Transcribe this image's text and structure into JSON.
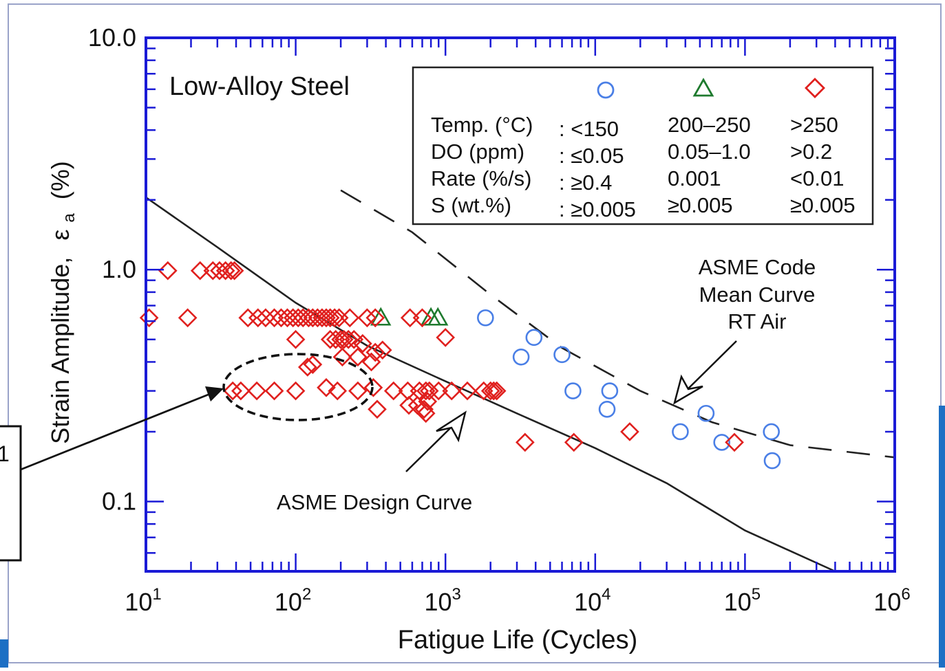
{
  "chart_data": {
    "type": "scatter",
    "title": "Low-Alloy Steel",
    "xlabel": "Fatigue Life (Cycles)",
    "ylabel_main": "Strain Amplitude,",
    "ylabel_sym": "ε",
    "ylabel_sub": "a",
    "ylabel_unit": "(%)",
    "x_scale": "log",
    "y_scale": "log",
    "xlim": [
      10,
      1000000
    ],
    "ylim": [
      0.05,
      10
    ],
    "x_ticks": [
      {
        "value": 10,
        "base": "10",
        "exp": "1"
      },
      {
        "value": 100,
        "base": "10",
        "exp": "2"
      },
      {
        "value": 1000,
        "base": "10",
        "exp": "3"
      },
      {
        "value": 10000,
        "base": "10",
        "exp": "4"
      },
      {
        "value": 100000,
        "base": "10",
        "exp": "5"
      },
      {
        "value": 1000000,
        "base": "10",
        "exp": "6"
      }
    ],
    "y_ticks": [
      {
        "value": 10,
        "label": "10.0"
      },
      {
        "value": 1,
        "label": "1.0"
      },
      {
        "value": 0.1,
        "label": "0.1"
      }
    ],
    "legend": {
      "placement": "top-right",
      "symbol_colors": [
        "#4a7fe6",
        "#1e7a2e",
        "#e0201e"
      ],
      "rows": [
        {
          "label": "Temp. (°C)",
          "values": [
            ": <150",
            "200–250",
            ">250"
          ]
        },
        {
          "label": "DO (ppm)",
          "values": [
            ": ≤0.05",
            "0.05–1.0",
            ">0.2"
          ]
        },
        {
          "label": "Rate (%/s)",
          "values": [
            ": ≥0.4",
            "0.001",
            "<0.01"
          ]
        },
        {
          "label": "S (wt.%)",
          "values": [
            ": ≥0.005",
            "≥0.005",
            "≥0.005"
          ]
        }
      ]
    },
    "series": [
      {
        "marker": "circle",
        "color": "#4a7fe6",
        "points": [
          [
            1850,
            0.62
          ],
          [
            3200,
            0.42
          ],
          [
            3900,
            0.51
          ],
          [
            6000,
            0.43
          ],
          [
            7100,
            0.3
          ],
          [
            12000,
            0.25
          ],
          [
            12500,
            0.3
          ],
          [
            37000,
            0.2
          ],
          [
            55000,
            0.24
          ],
          [
            70000,
            0.18
          ],
          [
            150000,
            0.2
          ],
          [
            152000,
            0.15
          ]
        ]
      },
      {
        "marker": "triangle",
        "color": "#1e7a2e",
        "points": [
          [
            370,
            0.62
          ],
          [
            800,
            0.62
          ],
          [
            890,
            0.62
          ]
        ]
      },
      {
        "marker": "diamond",
        "color": "#e0201e",
        "points": [
          [
            14,
            0.99
          ],
          [
            23,
            0.99
          ],
          [
            28,
            0.99
          ],
          [
            31,
            0.99
          ],
          [
            34,
            0.99
          ],
          [
            37,
            0.99
          ],
          [
            39,
            0.99
          ],
          [
            10.5,
            0.62
          ],
          [
            19,
            0.62
          ],
          [
            48,
            0.62
          ],
          [
            56,
            0.62
          ],
          [
            63,
            0.62
          ],
          [
            72,
            0.62
          ],
          [
            80,
            0.62
          ],
          [
            88,
            0.62
          ],
          [
            96,
            0.62
          ],
          [
            104,
            0.62
          ],
          [
            112,
            0.62
          ],
          [
            122,
            0.62
          ],
          [
            130,
            0.62
          ],
          [
            140,
            0.62
          ],
          [
            150,
            0.62
          ],
          [
            160,
            0.62
          ],
          [
            170,
            0.62
          ],
          [
            182,
            0.62
          ],
          [
            195,
            0.62
          ],
          [
            230,
            0.62
          ],
          [
            300,
            0.62
          ],
          [
            340,
            0.62
          ],
          [
            580,
            0.62
          ],
          [
            700,
            0.62
          ],
          [
            100,
            0.5
          ],
          [
            170,
            0.5
          ],
          [
            185,
            0.5
          ],
          [
            200,
            0.5
          ],
          [
            210,
            0.5
          ],
          [
            225,
            0.5
          ],
          [
            245,
            0.5
          ],
          [
            280,
            0.48
          ],
          [
            1000,
            0.51
          ],
          [
            205,
            0.42
          ],
          [
            260,
            0.42
          ],
          [
            320,
            0.4
          ],
          [
            340,
            0.44
          ],
          [
            380,
            0.45
          ],
          [
            120,
            0.38
          ],
          [
            130,
            0.39
          ],
          [
            38,
            0.3
          ],
          [
            43,
            0.3
          ],
          [
            55,
            0.3
          ],
          [
            72,
            0.3
          ],
          [
            100,
            0.3
          ],
          [
            160,
            0.31
          ],
          [
            190,
            0.3
          ],
          [
            260,
            0.3
          ],
          [
            330,
            0.31
          ],
          [
            450,
            0.3
          ],
          [
            560,
            0.3
          ],
          [
            670,
            0.3
          ],
          [
            740,
            0.3
          ],
          [
            780,
            0.3
          ],
          [
            900,
            0.3
          ],
          [
            1100,
            0.3
          ],
          [
            1400,
            0.3
          ],
          [
            1800,
            0.3
          ],
          [
            2000,
            0.3
          ],
          [
            2100,
            0.3
          ],
          [
            2200,
            0.3
          ],
          [
            350,
            0.25
          ],
          [
            570,
            0.26
          ],
          [
            650,
            0.26
          ],
          [
            720,
            0.25
          ],
          [
            740,
            0.24
          ],
          [
            760,
            0.27
          ],
          [
            3400,
            0.18
          ],
          [
            7200,
            0.18
          ],
          [
            17000,
            0.2
          ],
          [
            85000,
            0.18
          ]
        ]
      }
    ],
    "curves": [
      {
        "name": "ASME Design Curve",
        "style": "solid",
        "points": [
          [
            10,
            2.05
          ],
          [
            30,
            1.25
          ],
          [
            100,
            0.72
          ],
          [
            300,
            0.47
          ],
          [
            1000,
            0.33
          ],
          [
            3000,
            0.24
          ],
          [
            10000,
            0.17
          ],
          [
            30000,
            0.12
          ],
          [
            100000,
            0.075
          ],
          [
            400000,
            0.05
          ]
        ]
      },
      {
        "name": "ASME Code Mean Curve RT Air",
        "style": "dashed",
        "points": [
          [
            200,
            2.2
          ],
          [
            600,
            1.45
          ],
          [
            2000,
            0.78
          ],
          [
            6000,
            0.46
          ],
          [
            20000,
            0.3
          ],
          [
            60000,
            0.22
          ],
          [
            200000,
            0.175
          ],
          [
            1000000,
            0.155
          ]
        ]
      }
    ],
    "annotations": [
      {
        "text_lines": [
          "ASME Code",
          "Mean Curve",
          "RT Air"
        ],
        "arrow_target": [
          30000,
          0.25
        ]
      },
      {
        "text_lines": [
          "ASME Design Curve"
        ],
        "arrow_target": [
          1400,
          0.27
        ]
      },
      {
        "type": "dashed-ellipse",
        "center": [
          95,
          0.31
        ],
        "label_box_text": "1"
      }
    ]
  }
}
